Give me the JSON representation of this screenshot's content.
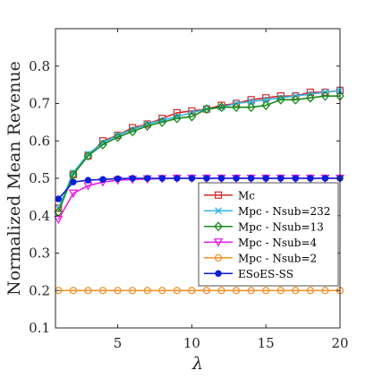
{
  "chart_data": {
    "type": "line",
    "xlabel": "λ",
    "ylabel": "Normalized Mean Revenue",
    "xlim": [
      0.8,
      20
    ],
    "ylim": [
      0.1,
      0.9
    ],
    "x_ticks": [
      5,
      10,
      15,
      20
    ],
    "y_ticks": [
      0.1,
      0.2,
      0.3,
      0.4,
      0.5,
      0.6,
      0.7,
      0.8
    ],
    "x_tick_labels": [
      "5",
      "10",
      "15",
      "20"
    ],
    "y_tick_labels": [
      "0.1",
      "0.2",
      "0.3",
      "0.4",
      "0.5",
      "0.6",
      "0.7",
      "0.8"
    ],
    "grid": false,
    "legend_position": "bottom-right",
    "x": [
      1,
      2,
      3,
      4,
      5,
      6,
      7,
      8,
      9,
      10,
      11,
      12,
      13,
      14,
      15,
      16,
      17,
      18,
      19,
      20
    ],
    "series": [
      {
        "name": "Mc",
        "color": "#d62728",
        "marker": "square",
        "values": [
          0.42,
          0.51,
          0.56,
          0.6,
          0.615,
          0.635,
          0.645,
          0.66,
          0.675,
          0.68,
          0.685,
          0.695,
          0.7,
          0.71,
          0.715,
          0.72,
          0.72,
          0.73,
          0.73,
          0.735
        ]
      },
      {
        "name": "Mpc - Nsub=232",
        "color": "#33b8e8",
        "marker": "x",
        "values": [
          0.42,
          0.515,
          0.565,
          0.595,
          0.615,
          0.63,
          0.645,
          0.655,
          0.665,
          0.675,
          0.685,
          0.69,
          0.7,
          0.705,
          0.71,
          0.715,
          0.72,
          0.725,
          0.73,
          0.735
        ]
      },
      {
        "name": "Mpc - Nsub=13",
        "color": "#1b8a1b",
        "marker": "diamond",
        "values": [
          0.41,
          0.51,
          0.56,
          0.59,
          0.61,
          0.625,
          0.64,
          0.65,
          0.66,
          0.665,
          0.685,
          0.69,
          0.69,
          0.69,
          0.695,
          0.71,
          0.71,
          0.715,
          0.72,
          0.72
        ]
      },
      {
        "name": "Mpc - Nsub=4",
        "color": "#e81ee8",
        "marker": "triangle-down",
        "values": [
          0.39,
          0.46,
          0.48,
          0.49,
          0.495,
          0.497,
          0.498,
          0.499,
          0.5,
          0.5,
          0.5,
          0.5,
          0.5,
          0.5,
          0.5,
          0.5,
          0.5,
          0.5,
          0.5,
          0.5
        ]
      },
      {
        "name": "Mpc - Nsub=2",
        "color": "#f0922b",
        "marker": "circle-open",
        "values": [
          0.2,
          0.2,
          0.2,
          0.2,
          0.2,
          0.2,
          0.2,
          0.2,
          0.2,
          0.2,
          0.2,
          0.2,
          0.2,
          0.2,
          0.2,
          0.2,
          0.2,
          0.2,
          0.2,
          0.2
        ]
      },
      {
        "name": "ESoES-SS",
        "color": "#0a1ed8",
        "marker": "circle-filled",
        "values": [
          0.445,
          0.49,
          0.495,
          0.497,
          0.499,
          0.5,
          0.5,
          0.5,
          0.5,
          0.5,
          0.5,
          0.5,
          0.5,
          0.5,
          0.5,
          0.5,
          0.5,
          0.5,
          0.5,
          0.5
        ]
      }
    ]
  }
}
